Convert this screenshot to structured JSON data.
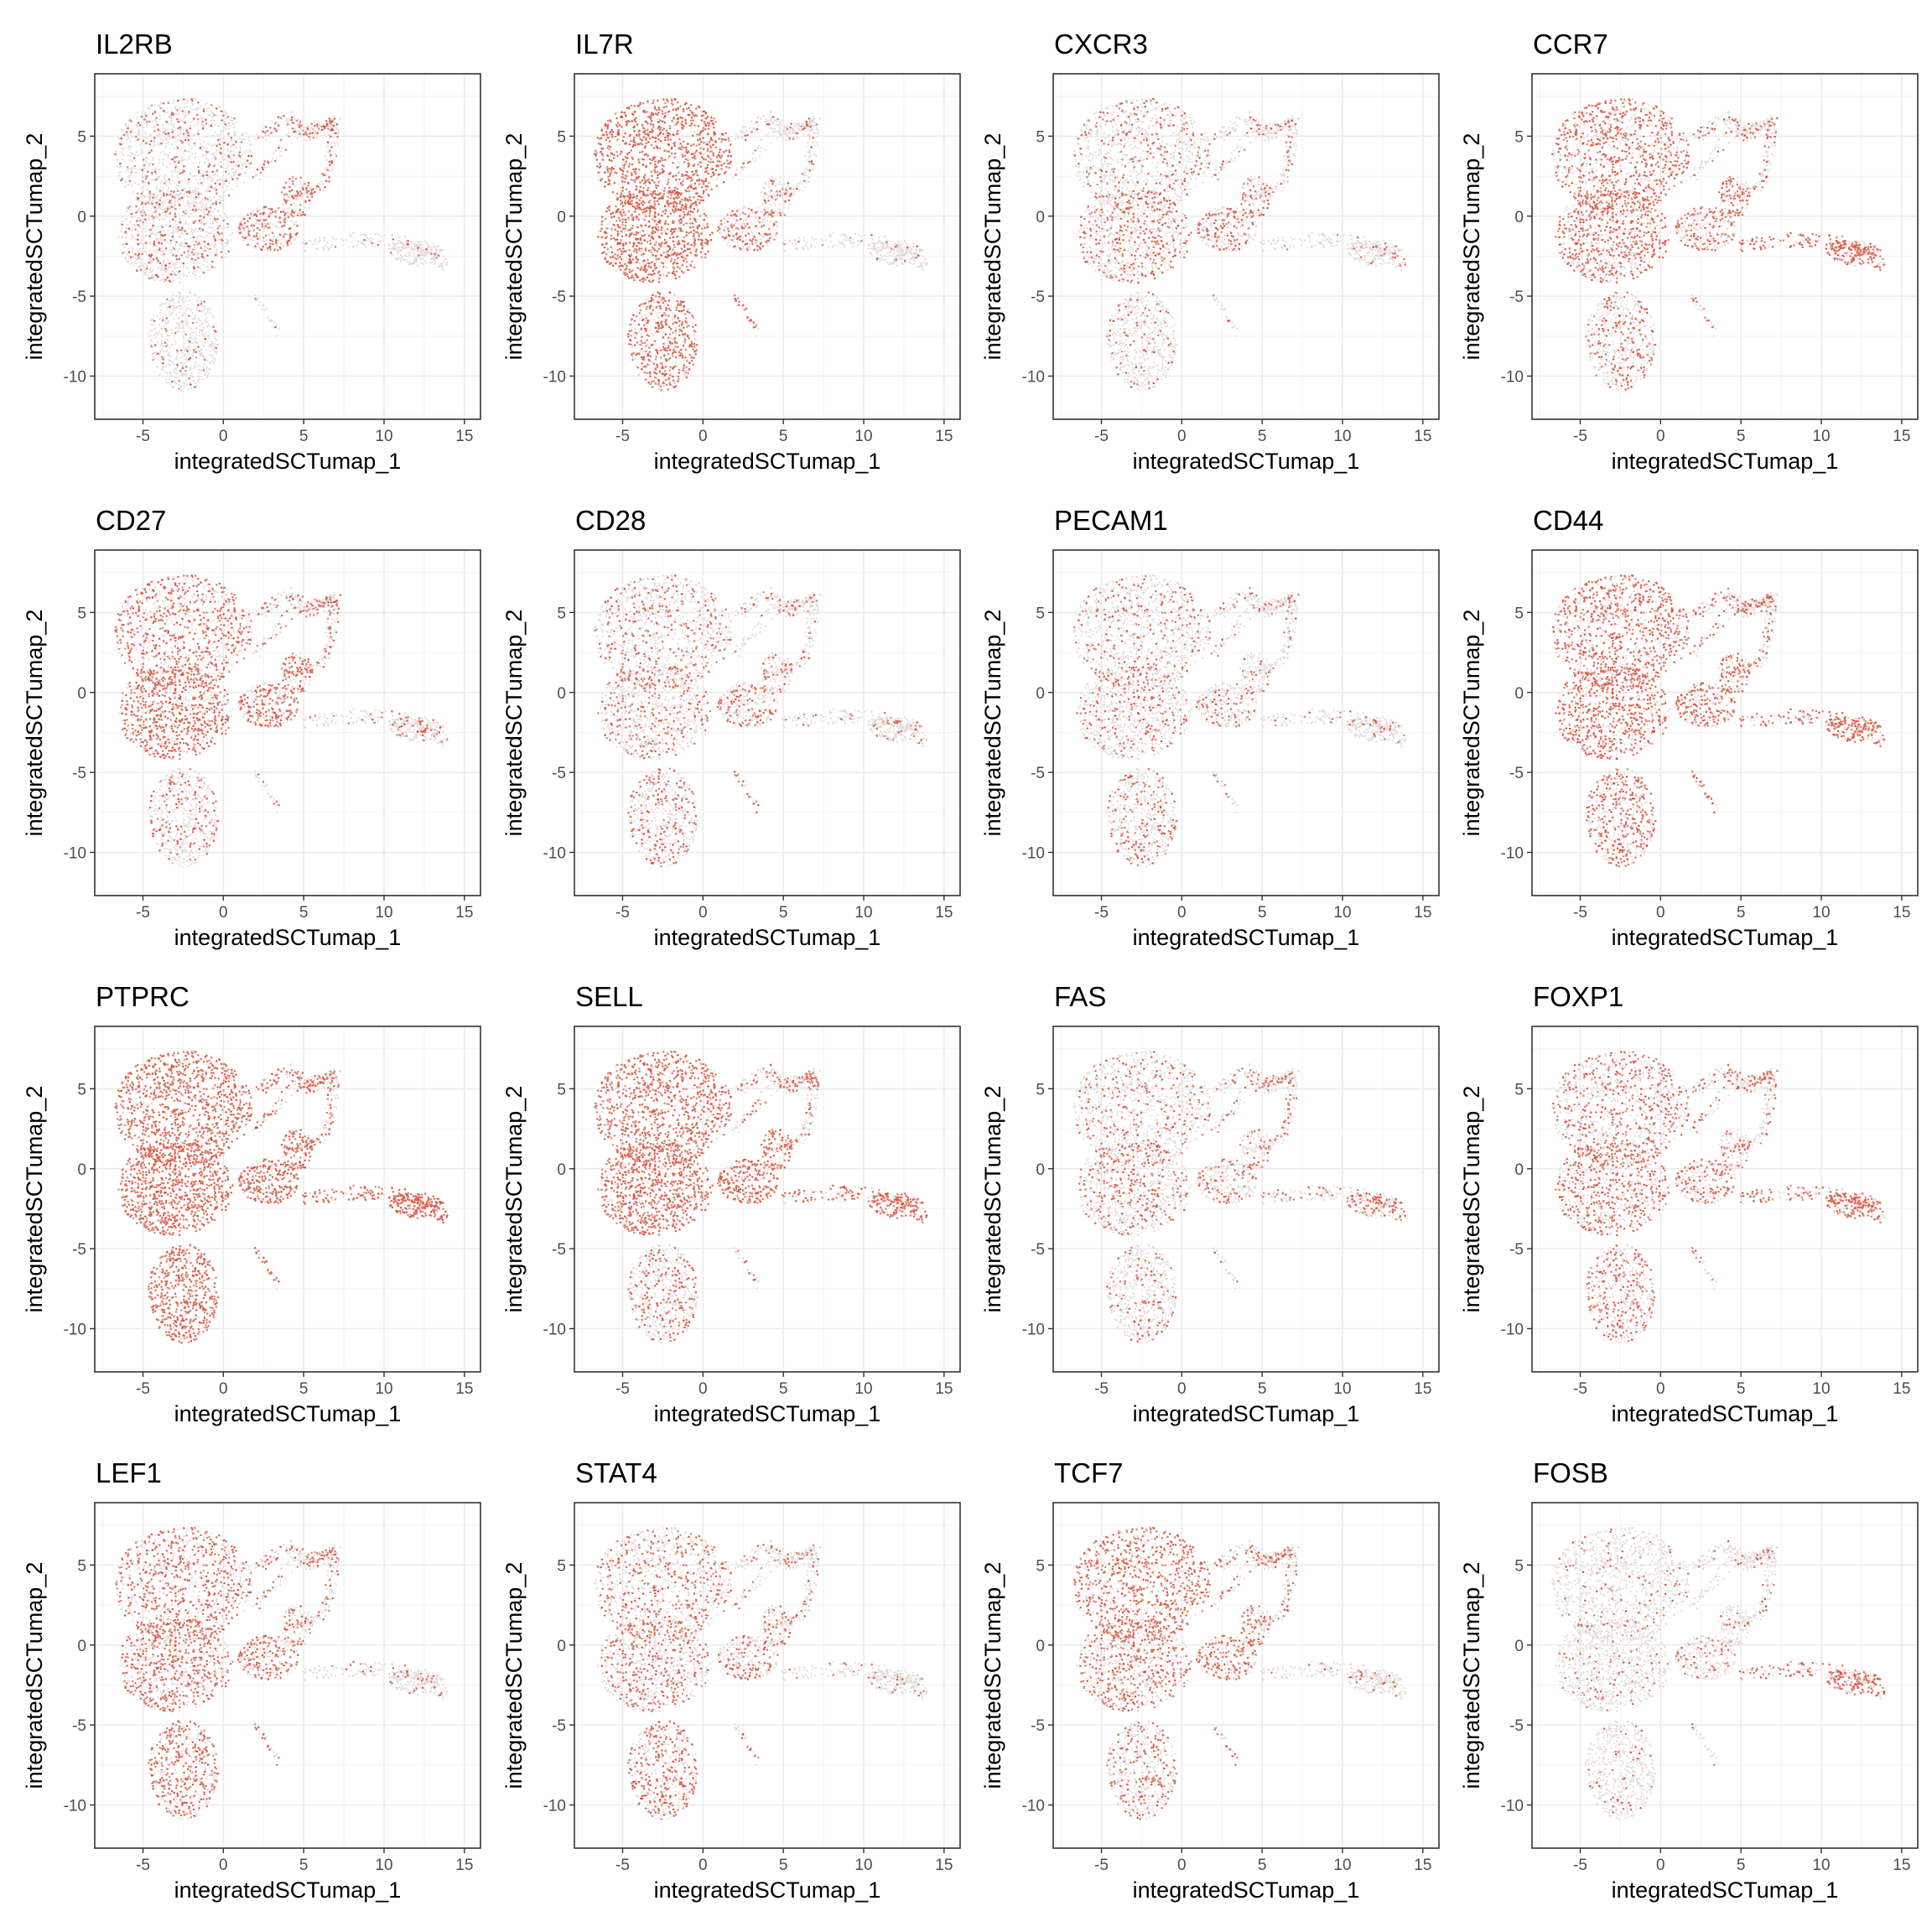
{
  "figure": {
    "colors": {
      "low": "#e3e3e3",
      "high": "#d9513a",
      "grid_major": "#ebebeb",
      "grid_minor": "#f4f4f4",
      "border": "#333333"
    }
  },
  "chart_data": [
    {
      "type": "scatter",
      "title": "IL2RB",
      "xlabel": "integratedSCTumap_1",
      "ylabel": "integratedSCTumap_2",
      "xlim": [
        -8,
        16
      ],
      "ylim": [
        -12.7,
        8.9
      ],
      "x_ticks": [
        "-5",
        "0",
        "5",
        "10",
        "15"
      ],
      "y_ticks": [
        "5",
        "0",
        "-5",
        "-10"
      ],
      "grid": true,
      "color_scale": [
        "#e3e3e3",
        "#d9513a"
      ],
      "expression": {
        "top_left": 0.22,
        "middle_left": 0.25,
        "bottom": 0.1,
        "branches_top_right": 0.3,
        "swirl": 0.45,
        "tail_right": 0.05
      }
    },
    {
      "type": "scatter",
      "title": "IL7R",
      "xlabel": "integratedSCTumap_1",
      "ylabel": "integratedSCTumap_2",
      "xlim": [
        -8,
        16
      ],
      "ylim": [
        -12.7,
        8.9
      ],
      "x_ticks": [
        "-5",
        "0",
        "5",
        "10",
        "15"
      ],
      "y_ticks": [
        "5",
        "0",
        "-5",
        "-10"
      ],
      "grid": true,
      "color_scale": [
        "#e3e3e3",
        "#d9513a"
      ],
      "expression": {
        "top_left": 0.9,
        "middle_left": 0.85,
        "bottom": 0.7,
        "branches_top_right": 0.15,
        "swirl": 0.35,
        "tail_right": 0.05
      }
    },
    {
      "type": "scatter",
      "title": "CXCR3",
      "xlabel": "integratedSCTumap_1",
      "ylabel": "integratedSCTumap_2",
      "xlim": [
        -8,
        16
      ],
      "ylim": [
        -12.7,
        8.9
      ],
      "x_ticks": [
        "-5",
        "0",
        "5",
        "10",
        "15"
      ],
      "y_ticks": [
        "5",
        "0",
        "-5",
        "-10"
      ],
      "grid": true,
      "color_scale": [
        "#e3e3e3",
        "#d9513a"
      ],
      "expression": {
        "top_left": 0.25,
        "middle_left": 0.35,
        "bottom": 0.15,
        "branches_top_right": 0.2,
        "swirl": 0.35,
        "tail_right": 0.1
      }
    },
    {
      "type": "scatter",
      "title": "CCR7",
      "xlabel": "integratedSCTumap_1",
      "ylabel": "integratedSCTumap_2",
      "xlim": [
        -8,
        16
      ],
      "ylim": [
        -12.7,
        8.9
      ],
      "x_ticks": [
        "-5",
        "0",
        "5",
        "10",
        "15"
      ],
      "y_ticks": [
        "5",
        "0",
        "-5",
        "-10"
      ],
      "grid": true,
      "color_scale": [
        "#e3e3e3",
        "#d9513a"
      ],
      "expression": {
        "top_left": 0.65,
        "middle_left": 0.55,
        "bottom": 0.35,
        "branches_top_right": 0.25,
        "swirl": 0.45,
        "tail_right": 0.7
      }
    },
    {
      "type": "scatter",
      "title": "CD27",
      "xlabel": "integratedSCTumap_1",
      "ylabel": "integratedSCTumap_2",
      "xlim": [
        -8,
        16
      ],
      "ylim": [
        -12.7,
        8.9
      ],
      "x_ticks": [
        "-5",
        "0",
        "5",
        "10",
        "15"
      ],
      "y_ticks": [
        "5",
        "0",
        "-5",
        "-10"
      ],
      "grid": true,
      "color_scale": [
        "#e3e3e3",
        "#d9513a"
      ],
      "expression": {
        "top_left": 0.6,
        "middle_left": 0.7,
        "bottom": 0.25,
        "branches_top_right": 0.35,
        "swirl": 0.6,
        "tail_right": 0.15
      }
    },
    {
      "type": "scatter",
      "title": "CD28",
      "xlabel": "integratedSCTumap_1",
      "ylabel": "integratedSCTumap_2",
      "xlim": [
        -8,
        16
      ],
      "ylim": [
        -12.7,
        8.9
      ],
      "x_ticks": [
        "-5",
        "0",
        "5",
        "10",
        "15"
      ],
      "y_ticks": [
        "5",
        "0",
        "-5",
        "-10"
      ],
      "grid": true,
      "color_scale": [
        "#e3e3e3",
        "#d9513a"
      ],
      "expression": {
        "top_left": 0.3,
        "middle_left": 0.3,
        "bottom": 0.3,
        "branches_top_right": 0.15,
        "swirl": 0.3,
        "tail_right": 0.1
      }
    },
    {
      "type": "scatter",
      "title": "PECAM1",
      "xlabel": "integratedSCTumap_1",
      "ylabel": "integratedSCTumap_2",
      "xlim": [
        -8,
        16
      ],
      "ylim": [
        -12.7,
        8.9
      ],
      "x_ticks": [
        "-5",
        "0",
        "5",
        "10",
        "15"
      ],
      "y_ticks": [
        "5",
        "0",
        "-5",
        "-10"
      ],
      "grid": true,
      "color_scale": [
        "#e3e3e3",
        "#d9513a"
      ],
      "expression": {
        "top_left": 0.2,
        "middle_left": 0.25,
        "bottom": 0.3,
        "branches_top_right": 0.15,
        "swirl": 0.2,
        "tail_right": 0.1
      }
    },
    {
      "type": "scatter",
      "title": "CD44",
      "xlabel": "integratedSCTumap_1",
      "ylabel": "integratedSCTumap_2",
      "xlim": [
        -8,
        16
      ],
      "ylim": [
        -12.7,
        8.9
      ],
      "x_ticks": [
        "-5",
        "0",
        "5",
        "10",
        "15"
      ],
      "y_ticks": [
        "5",
        "0",
        "-5",
        "-10"
      ],
      "grid": true,
      "color_scale": [
        "#e3e3e3",
        "#d9513a"
      ],
      "expression": {
        "top_left": 0.7,
        "middle_left": 0.65,
        "bottom": 0.55,
        "branches_top_right": 0.4,
        "swirl": 0.55,
        "tail_right": 0.55
      }
    },
    {
      "type": "scatter",
      "title": "PTPRC",
      "xlabel": "integratedSCTumap_1",
      "ylabel": "integratedSCTumap_2",
      "xlim": [
        -8,
        16
      ],
      "ylim": [
        -12.7,
        8.9
      ],
      "x_ticks": [
        "-5",
        "0",
        "5",
        "10",
        "15"
      ],
      "y_ticks": [
        "5",
        "0",
        "-5",
        "-10"
      ],
      "grid": true,
      "color_scale": [
        "#e3e3e3",
        "#d9513a"
      ],
      "expression": {
        "top_left": 0.95,
        "middle_left": 0.95,
        "bottom": 0.9,
        "branches_top_right": 0.5,
        "swirl": 0.8,
        "tail_right": 0.85
      }
    },
    {
      "type": "scatter",
      "title": "SELL",
      "xlabel": "integratedSCTumap_1",
      "ylabel": "integratedSCTumap_2",
      "xlim": [
        -8,
        16
      ],
      "ylim": [
        -12.7,
        8.9
      ],
      "x_ticks": [
        "-5",
        "0",
        "5",
        "10",
        "15"
      ],
      "y_ticks": [
        "5",
        "0",
        "-5",
        "-10"
      ],
      "grid": true,
      "color_scale": [
        "#e3e3e3",
        "#d9513a"
      ],
      "expression": {
        "top_left": 0.85,
        "middle_left": 0.85,
        "bottom": 0.35,
        "branches_top_right": 0.3,
        "swirl": 0.7,
        "tail_right": 0.65
      }
    },
    {
      "type": "scatter",
      "title": "FAS",
      "xlabel": "integratedSCTumap_1",
      "ylabel": "integratedSCTumap_2",
      "xlim": [
        -8,
        16
      ],
      "ylim": [
        -12.7,
        8.9
      ],
      "x_ticks": [
        "-5",
        "0",
        "5",
        "10",
        "15"
      ],
      "y_ticks": [
        "5",
        "0",
        "-5",
        "-10"
      ],
      "grid": true,
      "color_scale": [
        "#e3e3e3",
        "#d9513a"
      ],
      "expression": {
        "top_left": 0.25,
        "middle_left": 0.3,
        "bottom": 0.2,
        "branches_top_right": 0.25,
        "swirl": 0.35,
        "tail_right": 0.35
      }
    },
    {
      "type": "scatter",
      "title": "FOXP1",
      "xlabel": "integratedSCTumap_1",
      "ylabel": "integratedSCTumap_2",
      "xlim": [
        -8,
        16
      ],
      "ylim": [
        -12.7,
        8.9
      ],
      "x_ticks": [
        "-5",
        "0",
        "5",
        "10",
        "15"
      ],
      "y_ticks": [
        "5",
        "0",
        "-5",
        "-10"
      ],
      "grid": true,
      "color_scale": [
        "#e3e3e3",
        "#d9513a"
      ],
      "expression": {
        "top_left": 0.45,
        "middle_left": 0.45,
        "bottom": 0.4,
        "branches_top_right": 0.3,
        "swirl": 0.4,
        "tail_right": 0.6
      }
    },
    {
      "type": "scatter",
      "title": "LEF1",
      "xlabel": "integratedSCTumap_1",
      "ylabel": "integratedSCTumap_2",
      "xlim": [
        -8,
        16
      ],
      "ylim": [
        -12.7,
        8.9
      ],
      "x_ticks": [
        "-5",
        "0",
        "5",
        "10",
        "15"
      ],
      "y_ticks": [
        "5",
        "0",
        "-5",
        "-10"
      ],
      "grid": true,
      "color_scale": [
        "#e3e3e3",
        "#d9513a"
      ],
      "expression": {
        "top_left": 0.55,
        "middle_left": 0.55,
        "bottom": 0.6,
        "branches_top_right": 0.3,
        "swirl": 0.45,
        "tail_right": 0.1
      }
    },
    {
      "type": "scatter",
      "title": "STAT4",
      "xlabel": "integratedSCTumap_1",
      "ylabel": "integratedSCTumap_2",
      "xlim": [
        -8,
        16
      ],
      "ylim": [
        -12.7,
        8.9
      ],
      "x_ticks": [
        "-5",
        "0",
        "5",
        "10",
        "15"
      ],
      "y_ticks": [
        "5",
        "0",
        "-5",
        "-10"
      ],
      "grid": true,
      "color_scale": [
        "#e3e3e3",
        "#d9513a"
      ],
      "expression": {
        "top_left": 0.35,
        "middle_left": 0.35,
        "bottom": 0.45,
        "branches_top_right": 0.2,
        "swirl": 0.3,
        "tail_right": 0.1
      }
    },
    {
      "type": "scatter",
      "title": "TCF7",
      "xlabel": "integratedSCTumap_1",
      "ylabel": "integratedSCTumap_2",
      "xlim": [
        -8,
        16
      ],
      "ylim": [
        -12.7,
        8.9
      ],
      "x_ticks": [
        "-5",
        "0",
        "5",
        "10",
        "15"
      ],
      "y_ticks": [
        "5",
        "0",
        "-5",
        "-10"
      ],
      "grid": true,
      "color_scale": [
        "#e3e3e3",
        "#d9513a"
      ],
      "expression": {
        "top_left": 0.65,
        "middle_left": 0.45,
        "bottom": 0.35,
        "branches_top_right": 0.3,
        "swirl": 0.45,
        "tail_right": 0.05
      }
    },
    {
      "type": "scatter",
      "title": "FOSB",
      "xlabel": "integratedSCTumap_1",
      "ylabel": "integratedSCTumap_2",
      "xlim": [
        -8,
        16
      ],
      "ylim": [
        -12.7,
        8.9
      ],
      "x_ticks": [
        "-5",
        "0",
        "5",
        "10",
        "15"
      ],
      "y_ticks": [
        "5",
        "0",
        "-5",
        "-10"
      ],
      "grid": true,
      "color_scale": [
        "#e3e3e3",
        "#d9513a"
      ],
      "expression": {
        "top_left": 0.12,
        "middle_left": 0.1,
        "bottom": 0.08,
        "branches_top_right": 0.1,
        "swirl": 0.15,
        "tail_right": 0.5
      }
    }
  ]
}
